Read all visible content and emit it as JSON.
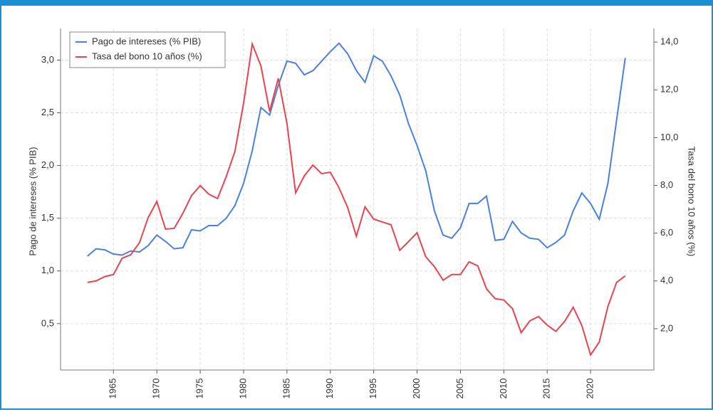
{
  "chart_data": {
    "type": "line",
    "y_label": "Pago de intereses (% PIB)",
    "y2_label": "Tasa del bono 10 años (%)",
    "x": [
      1962,
      1963,
      1964,
      1965,
      1966,
      1967,
      1968,
      1969,
      1970,
      1971,
      1972,
      1973,
      1974,
      1975,
      1976,
      1977,
      1978,
      1979,
      1980,
      1981,
      1982,
      1983,
      1984,
      1985,
      1986,
      1987,
      1988,
      1989,
      1990,
      1991,
      1992,
      1993,
      1994,
      1995,
      1996,
      1997,
      1998,
      1999,
      2000,
      2001,
      2002,
      2003,
      2004,
      2005,
      2006,
      2007,
      2008,
      2009,
      2010,
      2011,
      2012,
      2013,
      2014,
      2015,
      2016,
      2017,
      2018,
      2019,
      2020,
      2021,
      2022,
      2023,
      2024
    ],
    "series": [
      {
        "name": "Pago de intereses (% PIB)",
        "color": "#4a7fe3",
        "axis": "y",
        "values": [
          1.14,
          1.21,
          1.2,
          1.16,
          1.15,
          1.19,
          1.18,
          1.24,
          1.34,
          1.28,
          1.21,
          1.22,
          1.39,
          1.38,
          1.43,
          1.43,
          1.5,
          1.62,
          1.83,
          2.14,
          2.55,
          2.48,
          2.76,
          2.99,
          2.97,
          2.86,
          2.9,
          2.99,
          3.08,
          3.16,
          3.06,
          2.9,
          2.79,
          3.04,
          2.99,
          2.85,
          2.67,
          2.4,
          2.19,
          1.95,
          1.57,
          1.34,
          1.31,
          1.41,
          1.64,
          1.64,
          1.71,
          1.29,
          1.3,
          1.47,
          1.36,
          1.31,
          1.3,
          1.22,
          1.27,
          1.34,
          1.57,
          1.74,
          1.64,
          1.49,
          1.83,
          2.43,
          3.02
        ]
      },
      {
        "name": "Tasa del bono 10 años (%)",
        "color": "#e8434e",
        "axis": "y2",
        "values": [
          3.94,
          4.0,
          4.18,
          4.27,
          4.95,
          5.1,
          5.6,
          6.65,
          7.33,
          6.17,
          6.2,
          6.83,
          7.57,
          7.99,
          7.63,
          7.45,
          8.37,
          9.42,
          11.44,
          13.92,
          13.0,
          11.1,
          12.48,
          10.6,
          7.69,
          8.4,
          8.85,
          8.49,
          8.55,
          7.9,
          7.07,
          5.87,
          7.1,
          6.59,
          6.47,
          6.35,
          5.28,
          5.64,
          6.02,
          5.01,
          4.6,
          4.03,
          4.27,
          4.27,
          4.8,
          4.63,
          3.67,
          3.26,
          3.2,
          2.84,
          1.83,
          2.33,
          2.51,
          2.15,
          1.89,
          2.3,
          2.9,
          2.13,
          0.9,
          1.44,
          2.93,
          3.94,
          4.21
        ]
      }
    ],
    "xlim": [
      1958.9,
      2027.3
    ],
    "xticks": [
      1965,
      1970,
      1975,
      1980,
      1985,
      1990,
      1995,
      2000,
      2005,
      2010,
      2015,
      2020
    ],
    "ylim": [
      0.06,
      3.3
    ],
    "yticks": [
      {
        "value": 0.5,
        "label": "0,5"
      },
      {
        "value": 1,
        "label": "1,0"
      },
      {
        "value": 1.5,
        "label": "1,5"
      },
      {
        "value": 2,
        "label": "2,0"
      },
      {
        "value": 2.5,
        "label": "2,5"
      },
      {
        "value": 3,
        "label": "3,0"
      }
    ],
    "y2lim": [
      0.27,
      14.57
    ],
    "y2ticks": [
      {
        "value": 2,
        "label": "2,0"
      },
      {
        "value": 4,
        "label": "4,0"
      },
      {
        "value": 6,
        "label": "6,0"
      },
      {
        "value": 8,
        "label": "8,0"
      },
      {
        "value": 10,
        "label": "10,0"
      },
      {
        "value": 12,
        "label": "12,0"
      },
      {
        "value": 14,
        "label": "14,0"
      }
    ],
    "grid": true,
    "legend": "top-left"
  }
}
